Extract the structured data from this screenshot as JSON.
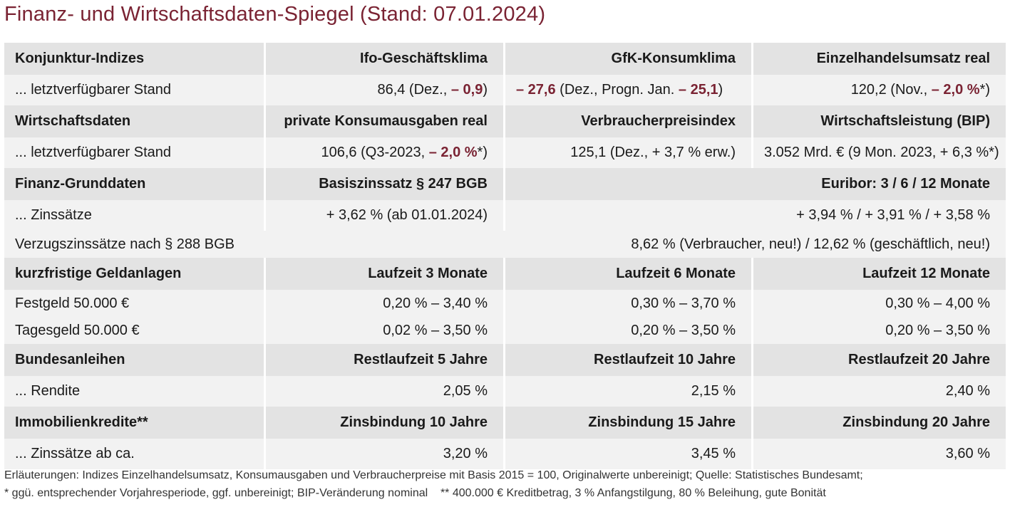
{
  "title": "Finanz- und Wirtschaftsdaten-Spiegel (Stand: 07.01.2024)",
  "colors": {
    "accent": "#7a2333",
    "header_bg": "#e3e3e3",
    "row_bg": "#f2f2f2"
  },
  "konjunktur": {
    "header": [
      "Konjunktur-Indizes",
      "Ifo-Geschäftsklima",
      "GfK-Konsumklima",
      "Einzelhandelsumsatz real"
    ],
    "row_label": "... letztverfügbarer Stand",
    "ifo": {
      "pre": "86,4 (Dez., ",
      "neg": "– 0,9",
      "post": ")"
    },
    "gfk": {
      "neg1": "– 27,6",
      "mid": " (Dez., Progn. Jan. ",
      "neg2": "– 25,1",
      "post": ")"
    },
    "einzelhandel": {
      "pre": "120,2 (Nov., ",
      "neg": "– 2,0 %",
      "post": "*)"
    }
  },
  "wirtschaft": {
    "header": [
      "Wirtschaftsdaten",
      "private Konsumausgaben real",
      "Verbraucherpreisindex",
      "Wirtschaftsleistung (BIP)"
    ],
    "row_label": "... letztverfügbarer Stand",
    "konsum": {
      "pre": "106,6 (Q3-2023, ",
      "neg": "– 2,0 %",
      "post": "*)"
    },
    "vpi": "125,1 (Dez., + 3,7 % erw.)",
    "bip": "3.052 Mrd. € (9 Mon. 2023, + 6,3 %*)"
  },
  "finanz": {
    "header": [
      "Finanz-Grunddaten",
      "Basiszinssatz § 247 BGB",
      "Euribor: 3 / 6 / 12 Monate"
    ],
    "row1": [
      "... Zinssätze",
      "+ 3,62 % (ab 01.01.2024)",
      "+ 3,94 % / + 3,91 % / + 3,58 %"
    ],
    "row2": [
      "Verzugszinssätze nach § 288 BGB",
      "8,62 % (Verbraucher, neu!) / 12,62 % (geschäftlich, neu!)"
    ]
  },
  "geldanlagen": {
    "header": [
      "kurzfristige Geldanlagen",
      "Laufzeit 3 Monate",
      "Laufzeit 6 Monate",
      "Laufzeit 12 Monate"
    ],
    "rows": [
      [
        "Festgeld 50.000 €",
        "0,20 % – 3,40 %",
        "0,30 % – 3,70 %",
        "0,30 % – 4,00 %"
      ],
      [
        "Tagesgeld 50.000 €",
        "0,02 % – 3,50 %",
        "0,20 % – 3,50 %",
        "0,20 % – 3,50 %"
      ]
    ]
  },
  "anleihen": {
    "header": [
      "Bundesanleihen",
      "Restlaufzeit 5 Jahre",
      "Restlaufzeit 10 Jahre",
      "Restlaufzeit 20 Jahre"
    ],
    "row": [
      "... Rendite",
      "2,05 %",
      "2,15 %",
      "2,40 %"
    ]
  },
  "immobilien": {
    "header": [
      "Immobilienkredite**",
      "Zinsbindung 10 Jahre",
      "Zinsbindung 15 Jahre",
      "Zinsbindung 20 Jahre"
    ],
    "row": [
      "... Zinssätze ab ca.",
      "3,20 %",
      "3,45 %",
      "3,60 %"
    ]
  },
  "notes": {
    "line1": "Erläuterungen: Indizes Einzelhandelsumsatz, Konsumausgaben und Verbraucherpreise mit Basis 2015 = 100, Originalwerte unbereinigt; Quelle: Statistisches Bundesamt;",
    "line2": "* ggü. entsprechender Vorjahresperiode, ggf. unbereinigt; BIP-Veränderung nominal    ** 400.000 € Kreditbetrag, 3 % Anfangstilgung, 80 % Beleihung, gute Bonität"
  }
}
